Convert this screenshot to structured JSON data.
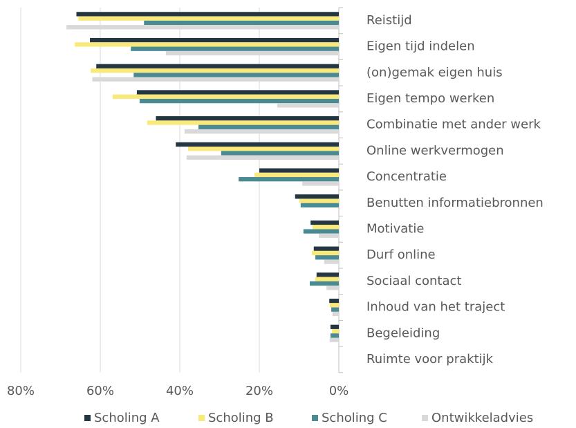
{
  "chart_data": {
    "type": "hbar",
    "categories": [
      "Reistijd",
      "Eigen tijd indelen",
      "(on)gemak eigen huis",
      "Eigen tempo werken",
      "Combinatie met ander werk",
      "Online werkvermogen",
      "Concentratie",
      "Benutten informatiebronnen",
      "Motivatie",
      "Durf online",
      "Sociaal contact",
      "Inhoud van het traject",
      "Begeleiding",
      "Ruimte voor praktijk"
    ],
    "series": [
      {
        "name": "Scholing A",
        "color": "#243642",
        "values": [
          66,
          62.6,
          61,
          50.8,
          46,
          41,
          20,
          11,
          7.1,
          6.3,
          5.6,
          2.4,
          2.1,
          0
        ]
      },
      {
        "name": "Scholing B",
        "color": "#f9e97a",
        "values": [
          65.5,
          66.4,
          62.4,
          56.9,
          48.2,
          37.9,
          21.2,
          9.9,
          6.6,
          6.8,
          5.9,
          2.3,
          1.7,
          0
        ]
      },
      {
        "name": "Scholing C",
        "color": "#4a8a93",
        "values": [
          49,
          52.3,
          51.6,
          50.1,
          35.3,
          29.6,
          25.2,
          9.6,
          8.9,
          5.9,
          7.3,
          1.9,
          2.1,
          0
        ]
      },
      {
        "name": "Ontwikkeladvies",
        "color": "#d9d9d9",
        "values": [
          68.5,
          43.5,
          62,
          15.5,
          38.8,
          38.3,
          9.2,
          0,
          5,
          3.7,
          3.1,
          1.6,
          2.3,
          0
        ]
      }
    ],
    "xlim": [
      80,
      0
    ],
    "xticks": [
      {
        "value": 80,
        "label": "80%"
      },
      {
        "value": 60,
        "label": "60%"
      },
      {
        "value": 40,
        "label": "40%"
      },
      {
        "value": 20,
        "label": "20%"
      },
      {
        "value": 0,
        "label": "0%"
      }
    ],
    "grid": true,
    "legend": "bottom"
  }
}
